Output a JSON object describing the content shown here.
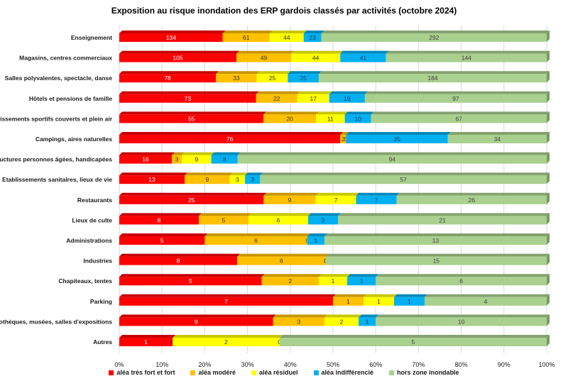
{
  "chart_data": {
    "type": "bar",
    "orientation": "horizontal",
    "stacked": "percent",
    "title": "Exposition au risque inondation des ERP gardois classés par activités (octobre 2024)",
    "categories": [
      "Enseignement",
      "Magasins, centres commerciaux",
      "Salles polyvalentes, spectacle, danse",
      "Hôtels et pensions de famille",
      "Etablissements sportifs couverts et plein air",
      "Campings, aires naturelles",
      "Structures personnes âgées, handicapées",
      "Etablissements sanitaires, lieux de vie",
      "Restaurants",
      "Lieux de culte",
      "Administrations",
      "Industries",
      "Chapiteaux, tentes",
      "Parking",
      "Bibliothèques, musées, salles d'expositions",
      "Autres"
    ],
    "series": [
      {
        "name": "aléa très fort et fort",
        "color": "#ff0000",
        "label_color": "#ffffff",
        "values": [
          134,
          105,
          78,
          73,
          55,
          76,
          16,
          13,
          25,
          8,
          5,
          8,
          5,
          7,
          9,
          1
        ]
      },
      {
        "name": "aléa modéré",
        "color": "#ffc000",
        "label_color": "#333333",
        "values": [
          61,
          49,
          33,
          22,
          20,
          2,
          3,
          9,
          9,
          5,
          6,
          6,
          2,
          1,
          3,
          0
        ]
      },
      {
        "name": "aléa résiduel",
        "color": "#ffff00",
        "label_color": "#333333",
        "values": [
          44,
          44,
          25,
          17,
          11,
          0,
          9,
          3,
          7,
          6,
          0,
          0,
          1,
          1,
          2,
          2
        ]
      },
      {
        "name": "aléa indifférencié",
        "color": "#00b0f0",
        "label_color": "#1f3864",
        "values": [
          23,
          41,
          25,
          19,
          10,
          35,
          8,
          3,
          7,
          3,
          1,
          0,
          1,
          1,
          1,
          0
        ]
      },
      {
        "name": "hors zone inondable",
        "color": "#a9d08e",
        "label_color": "#404040",
        "values": [
          292,
          144,
          184,
          97,
          67,
          34,
          94,
          57,
          26,
          21,
          13,
          15,
          6,
          4,
          10,
          5
        ]
      }
    ],
    "x_axis": {
      "ticks": [
        "0%",
        "10%",
        "20%",
        "30%",
        "40%",
        "50%",
        "60%",
        "70%",
        "80%",
        "90%",
        "100%"
      ],
      "range": [
        0,
        100
      ]
    },
    "grid": true,
    "legend_position": "bottom"
  }
}
